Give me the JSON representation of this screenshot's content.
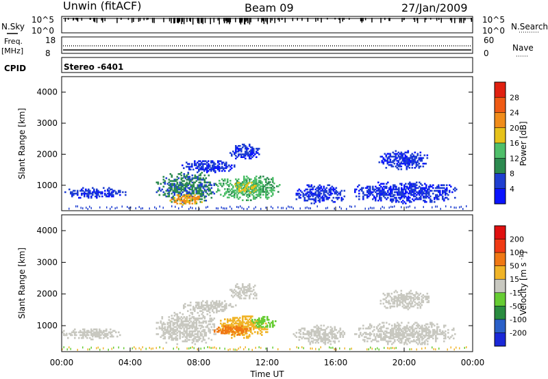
{
  "header": {
    "station": "Unwin (fitACF)",
    "beam": "Beam 09",
    "date": "27/Jan/2009"
  },
  "sky_panel": {
    "left_label": "N.Sky",
    "right_label": "N.Search",
    "ticks_left": [
      "10^5",
      "10^0"
    ],
    "ticks_right": [
      "10^5",
      "10^0"
    ]
  },
  "freq_panel": {
    "left_label_1": "Freq.",
    "left_label_2": "[MHz]",
    "right_label": "Nave",
    "ticks_left": [
      "18",
      "8"
    ],
    "ticks_right": [
      "60",
      "0"
    ]
  },
  "cpid_panel": {
    "label": "CPID",
    "value": "Stereo -6401"
  },
  "chart_data": [
    {
      "type": "heatmap",
      "name": "power",
      "ylabel": "Slant Range [km]",
      "xlabel": "Time UT",
      "ylim": [
        180,
        4500
      ],
      "yticks": [
        "1000",
        "2000",
        "3000",
        "4000"
      ],
      "xticks": [
        "00:00",
        "04:00",
        "08:00",
        "12:00",
        "16:00",
        "20:00",
        "00:00"
      ],
      "colorbar": {
        "label": "Power [dB]",
        "ticks": [
          "4",
          "8",
          "12",
          "16",
          "20",
          "24",
          "28"
        ],
        "colors": [
          "#0a14ff",
          "#1f3fd0",
          "#2c8a4f",
          "#4fbf6a",
          "#e6c21a",
          "#f08c1a",
          "#ef5a14",
          "#e02010"
        ]
      },
      "regions": [
        {
          "t0": 0.0,
          "t1": 3.7,
          "r0": 580,
          "r1": 900,
          "level": 1
        },
        {
          "t0": 5.5,
          "t1": 9.0,
          "r0": 400,
          "r1": 1400,
          "level": 2
        },
        {
          "t0": 6.3,
          "t1": 8.3,
          "r0": 350,
          "r1": 700,
          "level": 5
        },
        {
          "t0": 9.0,
          "t1": 12.8,
          "r0": 500,
          "r1": 1300,
          "level": 3
        },
        {
          "t0": 10.0,
          "t1": 11.5,
          "r0": 700,
          "r1": 1100,
          "level": 4
        },
        {
          "t0": 7.0,
          "t1": 10.2,
          "r0": 1400,
          "r1": 1800,
          "level": 1
        },
        {
          "t0": 9.8,
          "t1": 11.5,
          "r0": 1800,
          "r1": 2300,
          "level": 1
        },
        {
          "t0": 13.5,
          "t1": 16.5,
          "r0": 400,
          "r1": 1000,
          "level": 1
        },
        {
          "t0": 17.0,
          "t1": 23.0,
          "r0": 400,
          "r1": 1100,
          "level": 1
        },
        {
          "t0": 18.5,
          "t1": 21.5,
          "r0": 1500,
          "r1": 2100,
          "level": 1
        }
      ]
    },
    {
      "type": "heatmap",
      "name": "velocity",
      "ylabel": "Slant Range [km]",
      "xlabel": "Time UT",
      "ylim": [
        180,
        4500
      ],
      "yticks": [
        "1000",
        "2000",
        "3000",
        "4000"
      ],
      "xticks": [
        "00:00",
        "04:00",
        "08:00",
        "12:00",
        "16:00",
        "20:00",
        "00:00"
      ],
      "colorbar": {
        "label": "Velocity [m s^-1]",
        "ticks": [
          "200",
          "100",
          "50",
          "15",
          "-15",
          "-50",
          "-100",
          "-200"
        ],
        "colors": [
          "#1a28d8",
          "#2a60c8",
          "#2a8c40",
          "#66cc33",
          "#c8c8c0",
          "#f0b428",
          "#f07814",
          "#f03a14",
          "#e01010"
        ]
      },
      "regions": [
        {
          "t0": 0.0,
          "t1": 3.5,
          "r0": 550,
          "r1": 900,
          "color": "#c8c8c0"
        },
        {
          "t0": 5.5,
          "t1": 9.0,
          "r0": 400,
          "r1": 1400,
          "color": "#c8c8c0"
        },
        {
          "t0": 7.0,
          "t1": 10.2,
          "r0": 1400,
          "r1": 1800,
          "color": "#c8c8c0"
        },
        {
          "t0": 9.8,
          "t1": 11.5,
          "r0": 1800,
          "r1": 2300,
          "color": "#c8c8c0"
        },
        {
          "t0": 9.0,
          "t1": 12.0,
          "r0": 600,
          "r1": 1300,
          "color": "#f0b428"
        },
        {
          "t0": 11.0,
          "t1": 12.5,
          "r0": 900,
          "r1": 1300,
          "color": "#66cc33"
        },
        {
          "t0": 8.8,
          "t1": 11.0,
          "r0": 700,
          "r1": 1000,
          "color": "#f07814"
        },
        {
          "t0": 13.5,
          "t1": 16.5,
          "r0": 400,
          "r1": 1000,
          "color": "#c8c8c0"
        },
        {
          "t0": 17.0,
          "t1": 23.0,
          "r0": 400,
          "r1": 1100,
          "color": "#c8c8c0"
        },
        {
          "t0": 18.5,
          "t1": 21.5,
          "r0": 1500,
          "r1": 2100,
          "color": "#c8c8c0"
        }
      ]
    }
  ]
}
